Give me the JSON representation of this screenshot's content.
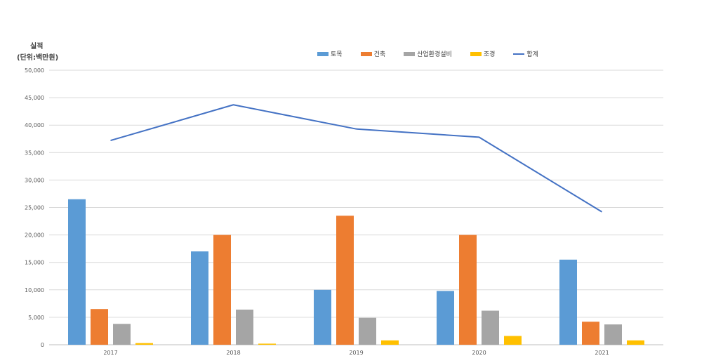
{
  "chart_data": {
    "type": "bar",
    "ylabel_lines": [
      "실적",
      "(단위:백만원)"
    ],
    "categories": [
      "2017",
      "2018",
      "2019",
      "2020",
      "2021"
    ],
    "yticks": [
      "0",
      "5,000",
      "10,000",
      "15,000",
      "20,000",
      "25,000",
      "30,000",
      "35,000",
      "40,000",
      "45,000",
      "50,000"
    ],
    "ylim": [
      0,
      50000
    ],
    "grid": true,
    "legend_position": "top",
    "series": [
      {
        "name": "토목",
        "type": "bar",
        "color": "#5B9BD5",
        "values": [
          26500,
          17000,
          10000,
          9800,
          15500
        ]
      },
      {
        "name": "건축",
        "type": "bar",
        "color": "#ED7D31",
        "values": [
          6500,
          20000,
          23500,
          20000,
          4200
        ]
      },
      {
        "name": "산업환경설비",
        "type": "bar",
        "color": "#A5A5A5",
        "values": [
          3800,
          6400,
          4900,
          6200,
          3700
        ]
      },
      {
        "name": "조경",
        "type": "bar",
        "color": "#FFC000",
        "values": [
          300,
          200,
          800,
          1600,
          800
        ]
      },
      {
        "name": "합계",
        "type": "line",
        "color": "#4472C4",
        "values": [
          37200,
          43700,
          39300,
          37800,
          24200
        ]
      }
    ]
  }
}
